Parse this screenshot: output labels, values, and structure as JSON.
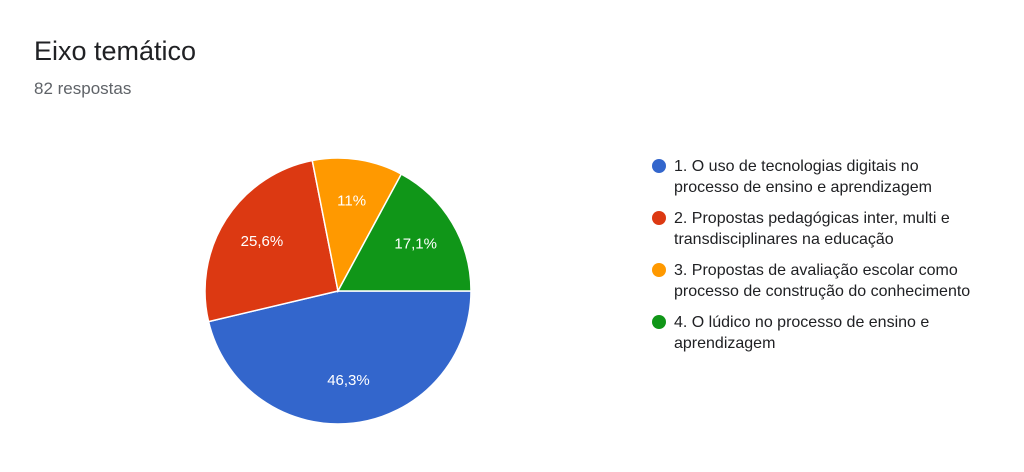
{
  "header": {
    "title": "Eixo temático",
    "subtitle": "82 respostas"
  },
  "chart_data": {
    "type": "pie",
    "title": "Eixo temático",
    "subtitle": "82 respostas",
    "legend_position": "right",
    "start_angle_deg": 90,
    "direction": "clockwise",
    "slices": [
      {
        "label": "1. O uso de tecnologias digitais no processo de ensino e aprendizagem",
        "value": 46.3,
        "display": "46,3%",
        "color": "#3366cc"
      },
      {
        "label": "2. Propostas pedagógicas inter, multi e transdisciplinares na educação",
        "value": 25.6,
        "display": "25,6%",
        "color": "#dc3912"
      },
      {
        "label": "3. Propostas de avaliação escolar como processo de construção do conhecimento",
        "value": 11.0,
        "display": "11%",
        "color": "#ff9900"
      },
      {
        "label": "4. O lúdico no processo de ensino e aprendizagem",
        "value": 17.1,
        "display": "17,1%",
        "color": "#109618"
      }
    ]
  }
}
